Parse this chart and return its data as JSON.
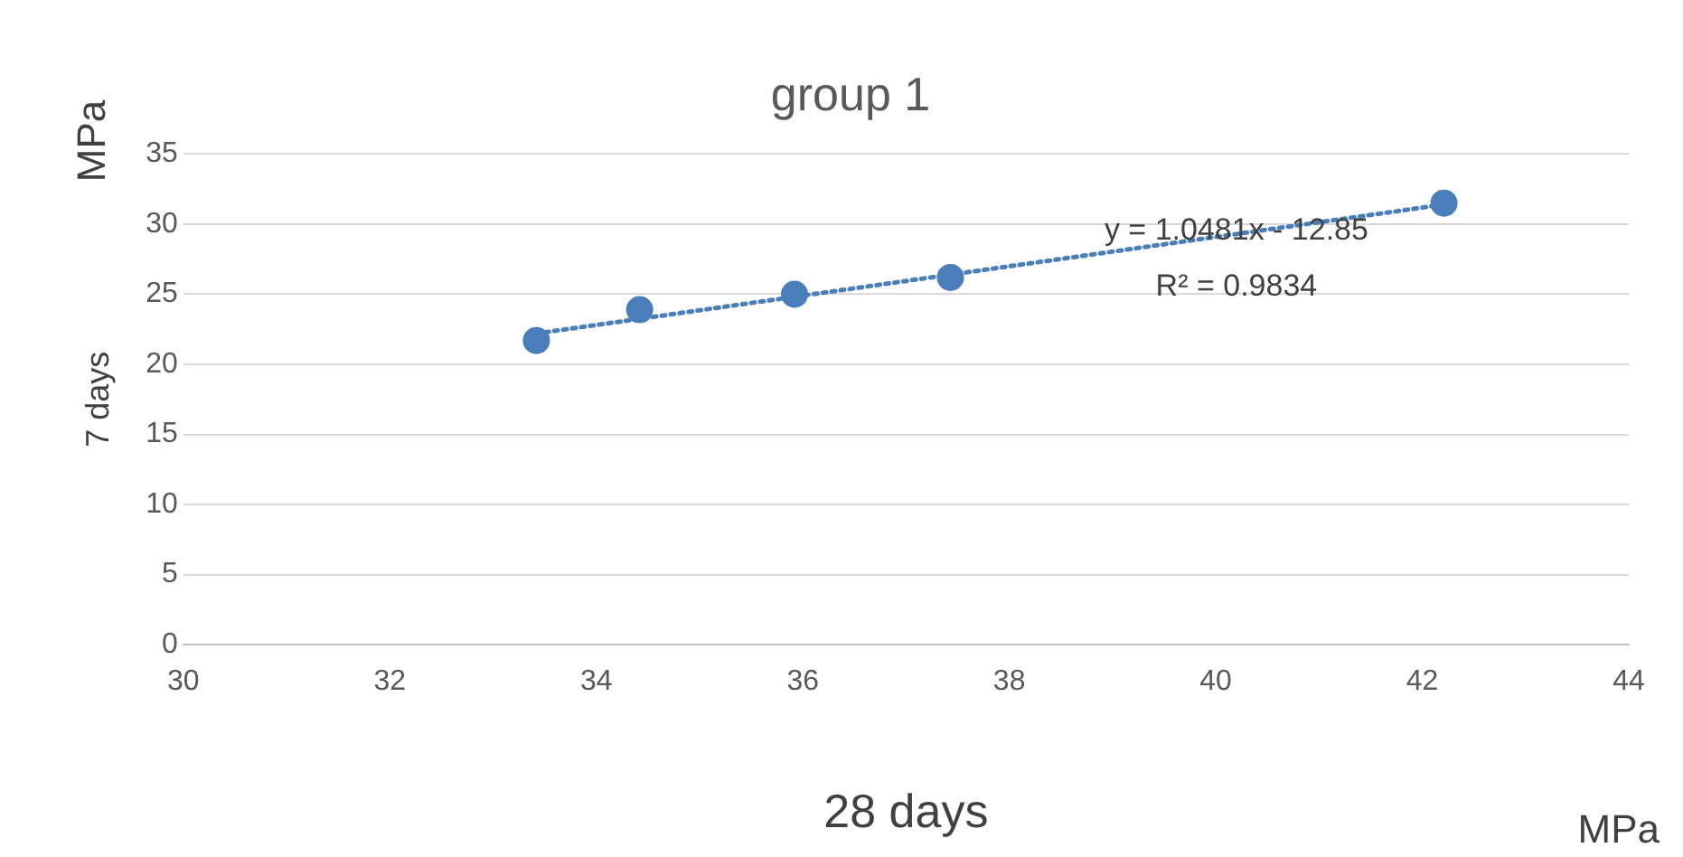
{
  "chart_data": {
    "type": "scatter",
    "title": "group 1",
    "xlabel": "28 days",
    "ylabel": "7 days",
    "annotations": [
      "MPa",
      "MPa",
      "y = 1.0481x - 12.85",
      "R² = 0.9834"
    ],
    "series": [
      {
        "color": "#4a7ebb",
        "marker": "circle",
        "x": [
          33.42,
          34.42,
          35.92,
          37.43,
          42.21
        ],
        "values": [
          21.7,
          23.9,
          25.0,
          26.2,
          31.5
        ]
      },
      {
        "type": "line",
        "color": "#4a7ebb",
        "marker": "none",
        "line_style": "dotted",
        "x": [
          33.42,
          42.21
        ],
        "values": [
          22.2,
          31.4
        ]
      }
    ],
    "xlim": [
      30,
      44
    ],
    "xticks": [
      30,
      32,
      34,
      36,
      38,
      40,
      42,
      44
    ],
    "ylim": [
      0,
      35
    ],
    "yticks": [
      0,
      5,
      10,
      15,
      20,
      25,
      30,
      35
    ],
    "grid": "y",
    "legend": false
  }
}
